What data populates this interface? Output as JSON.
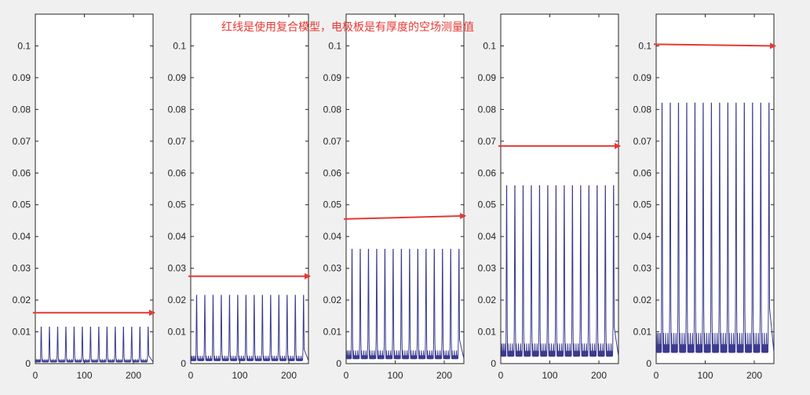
{
  "annotation": "红线是使用复合模型，电极板是有厚度的空场测量值",
  "colors": {
    "series": "#3b3b8f",
    "arrow": "#e53935",
    "frame": "#262626",
    "background": "#f0f0f0"
  },
  "chart_data": [
    {
      "type": "line",
      "xlim": [
        0,
        240
      ],
      "ylim": [
        0,
        0.11
      ],
      "xticks": [
        "0",
        "100",
        "200"
      ],
      "yticks": [
        "0",
        "0.01",
        "0.02",
        "0.03",
        "0.04",
        "0.05",
        "0.06",
        "0.07",
        "0.08",
        "0.09",
        "0.1"
      ],
      "peak_count": 14,
      "peak_x_range": [
        12,
        230
      ],
      "peak_y": 0.0115,
      "base_y": 0.0025,
      "red_arrow_y": [
        0.016,
        0.016
      ]
    },
    {
      "type": "line",
      "xlim": [
        0,
        240
      ],
      "ylim": [
        0,
        0.11
      ],
      "xticks": [
        "0",
        "100",
        "200"
      ],
      "yticks": [
        "0",
        "0.01",
        "0.02",
        "0.03",
        "0.04",
        "0.05",
        "0.06",
        "0.07",
        "0.08",
        "0.09",
        "0.1"
      ],
      "peak_count": 14,
      "peak_x_range": [
        12,
        230
      ],
      "peak_y": 0.0215,
      "base_y": 0.0045,
      "red_arrow_y": [
        0.0275,
        0.0275
      ]
    },
    {
      "type": "line",
      "xlim": [
        0,
        240
      ],
      "ylim": [
        0,
        0.11
      ],
      "xticks": [
        "0",
        "100",
        "200"
      ],
      "yticks": [
        "0",
        "0.01",
        "0.02",
        "0.03",
        "0.04",
        "0.05",
        "0.06",
        "0.07",
        "0.08",
        "0.09",
        "0.1"
      ],
      "peak_count": 14,
      "peak_x_range": [
        12,
        230
      ],
      "peak_y": 0.036,
      "base_y": 0.0075,
      "red_arrow_y": [
        0.0455,
        0.0465
      ]
    },
    {
      "type": "line",
      "xlim": [
        0,
        240
      ],
      "ylim": [
        0,
        0.11
      ],
      "xticks": [
        "0",
        "100",
        "200"
      ],
      "yticks": [
        "0",
        "0.01",
        "0.02",
        "0.03",
        "0.04",
        "0.05",
        "0.06",
        "0.07",
        "0.08",
        "0.09",
        "0.1"
      ],
      "peak_count": 14,
      "peak_x_range": [
        12,
        230
      ],
      "peak_y": 0.056,
      "base_y": 0.0115,
      "red_arrow_y": [
        0.0685,
        0.0685
      ]
    },
    {
      "type": "line",
      "xlim": [
        0,
        240
      ],
      "ylim": [
        0,
        0.11
      ],
      "xticks": [
        "0",
        "100",
        "200"
      ],
      "yticks": [
        "0",
        "0.01",
        "0.02",
        "0.03",
        "0.04",
        "0.05",
        "0.06",
        "0.07",
        "0.08",
        "0.09",
        "0.1"
      ],
      "peak_count": 14,
      "peak_x_range": [
        12,
        230
      ],
      "peak_y": 0.082,
      "base_y": 0.0175,
      "red_arrow_y": [
        0.1005,
        0.1
      ]
    }
  ]
}
